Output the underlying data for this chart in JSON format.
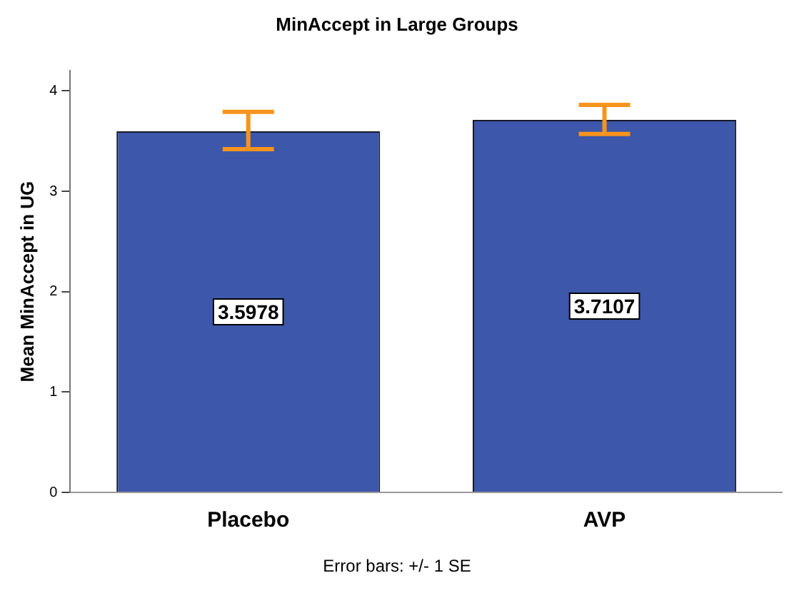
{
  "chart_data": {
    "type": "bar",
    "title": "MinAccept in Large Groups",
    "ylabel": "Mean MinAccept in UG",
    "annotations": [
      "Error bars: +/- 1 SE"
    ],
    "categories": [
      "Placebo",
      "AVP"
    ],
    "values": [
      3.5978,
      3.7107
    ],
    "color": "#3d57aa",
    "data_labels": true,
    "errors": [
      [
        3.42,
        3.79
      ],
      [
        3.57,
        3.86
      ]
    ],
    "ylim": [
      0,
      4.2
    ],
    "yticks": [
      0,
      1,
      2,
      3,
      4
    ],
    "grid": false,
    "legend": false
  }
}
